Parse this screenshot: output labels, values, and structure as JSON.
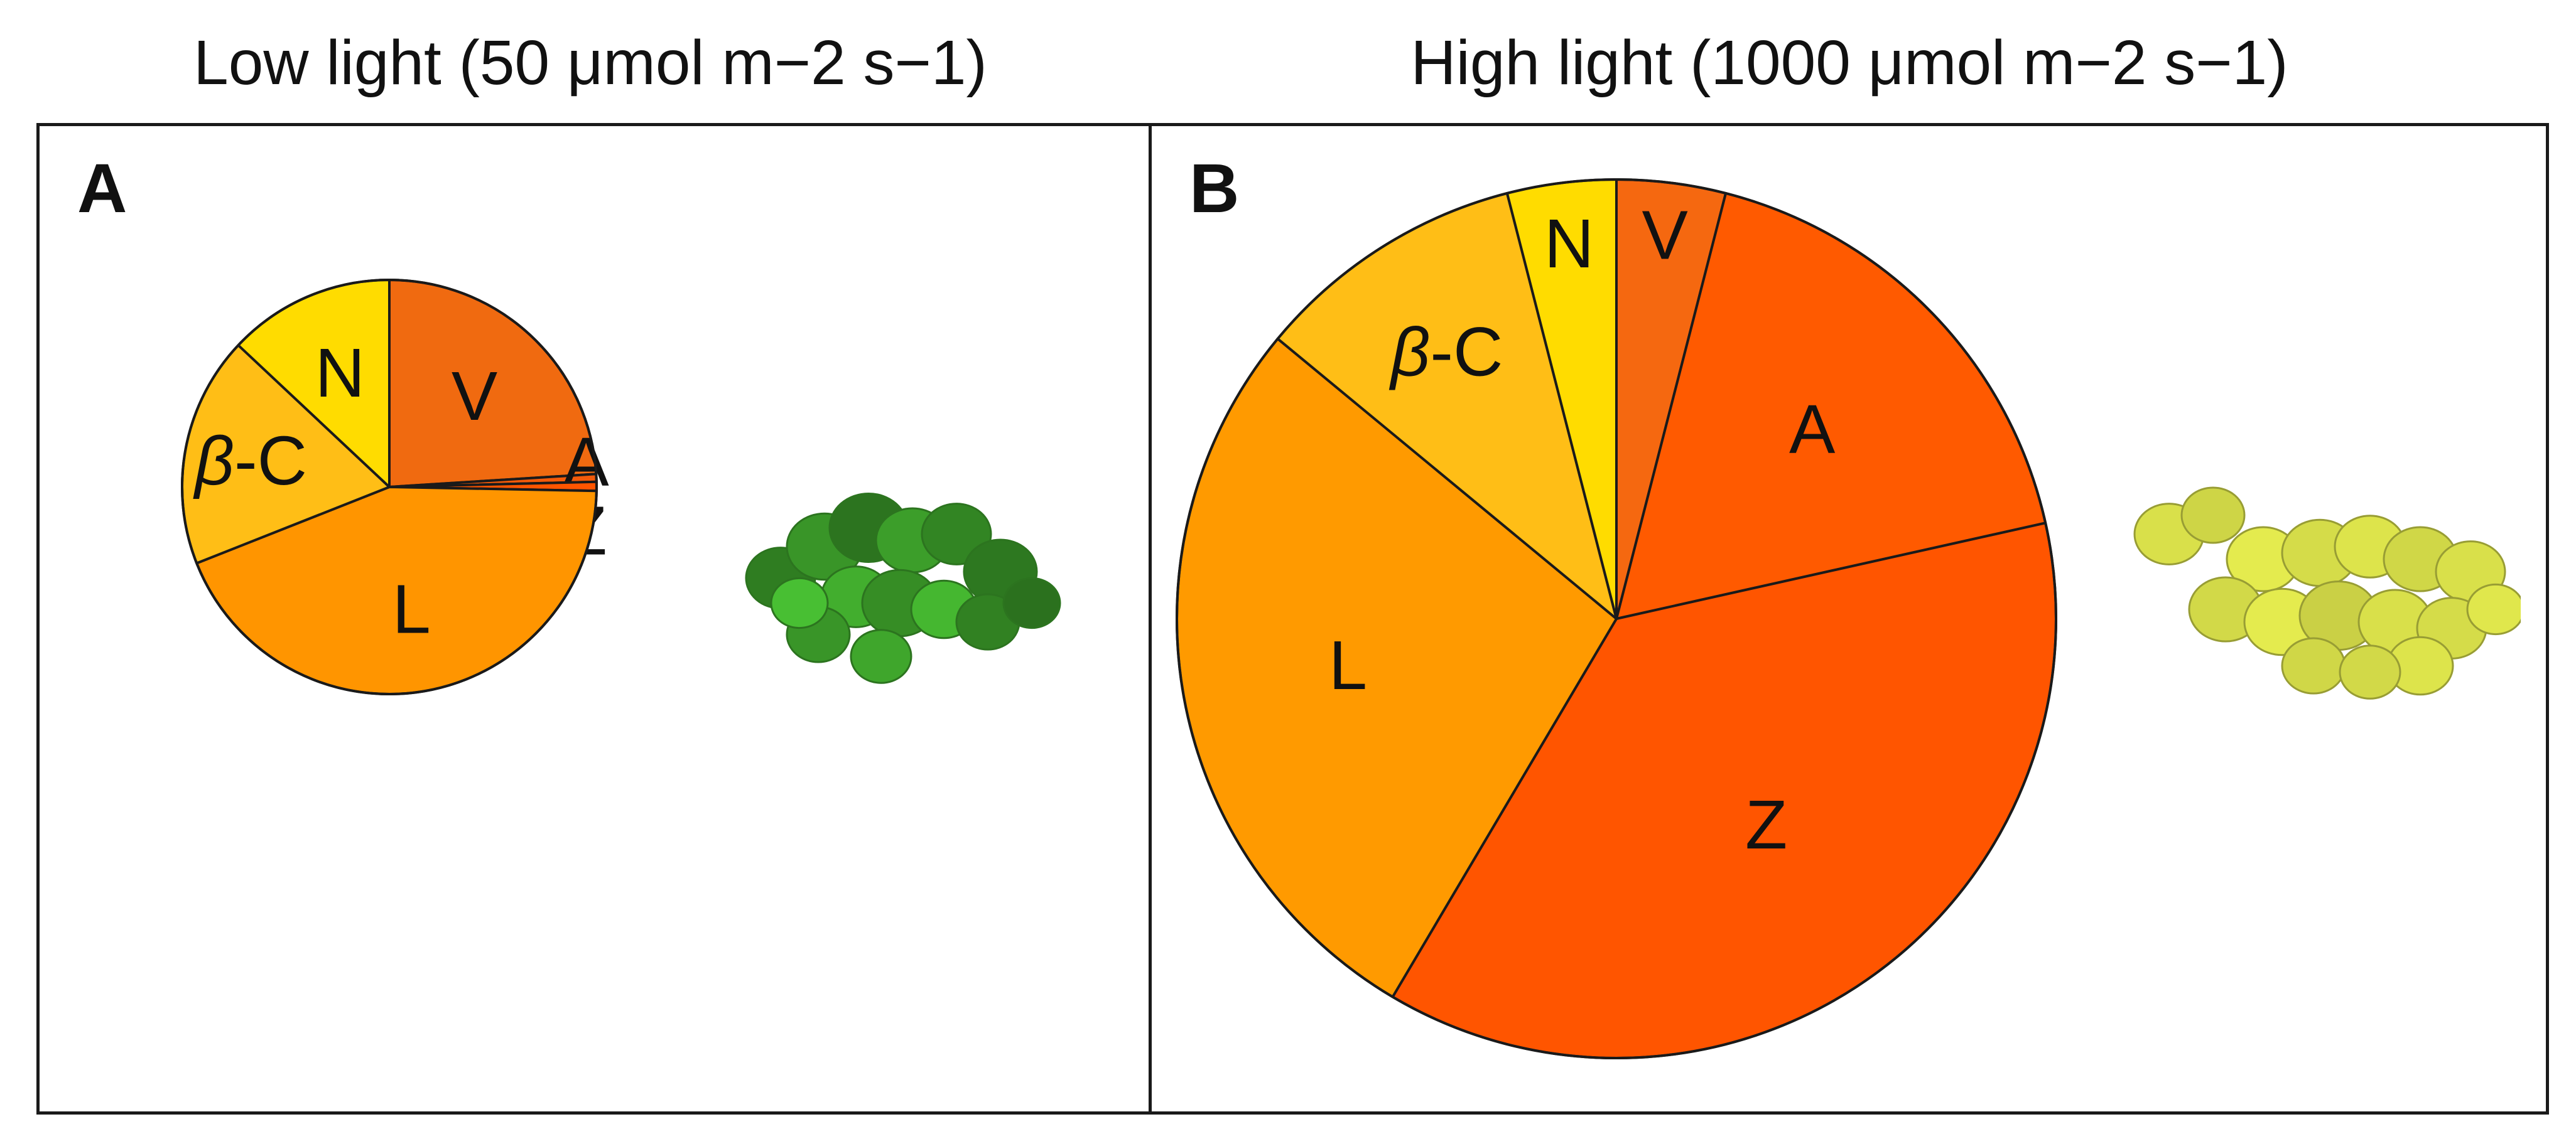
{
  "panels": {
    "a": {
      "letter": "A",
      "heading": "Low light (50 μmol m−2 s−1)"
    },
    "b": {
      "letter": "B",
      "heading": "High light (1000 μmol m−2 s−1)"
    }
  },
  "chart_data": [
    {
      "type": "pie",
      "panel": "A",
      "title": "Low light (50 μmol m−2 s−1)",
      "slices": [
        {
          "label": "V",
          "value": 24,
          "color": "#F06A10"
        },
        {
          "label": "A",
          "value": 0.6,
          "color": "#F25A0A"
        },
        {
          "label": "Z",
          "value": 0.7,
          "color": "#FF5500"
        },
        {
          "label": "L",
          "value": 43.7,
          "color": "#FF9500"
        },
        {
          "label": "β-C",
          "value": 18,
          "color": "#FFBE16"
        },
        {
          "label": "N",
          "value": 13,
          "color": "#FFDC00"
        }
      ],
      "plant_color": "#3FA62C"
    },
    {
      "type": "pie",
      "panel": "B",
      "title": "High light (1000 μmol m−2 s−1)",
      "slices": [
        {
          "label": "V",
          "value": 4,
          "color": "#F56810"
        },
        {
          "label": "A",
          "value": 17.5,
          "color": "#FF5A00"
        },
        {
          "label": "Z",
          "value": 37,
          "color": "#FF5500"
        },
        {
          "label": "L",
          "value": 27.5,
          "color": "#FF9A00"
        },
        {
          "label": "β-C",
          "value": 10,
          "color": "#FFBE16"
        },
        {
          "label": "N",
          "value": 4,
          "color": "#FFDC00"
        }
      ],
      "plant_color": "#D9E04A"
    }
  ]
}
